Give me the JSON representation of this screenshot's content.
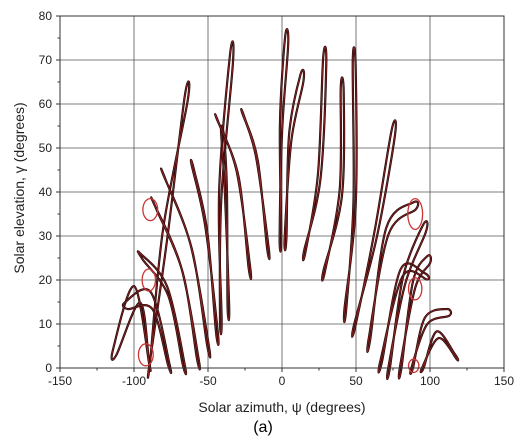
{
  "chart_data": {
    "type": "line",
    "title": "",
    "xlabel": "Solar azimuth, ψ (degrees)",
    "ylabel": "Solar elevation, γ (degrees)",
    "caption": "(a)",
    "xlim": [
      -150,
      150
    ],
    "ylim": [
      0,
      80
    ],
    "x_ticks": [
      -150,
      -100,
      -50,
      0,
      50,
      100,
      150
    ],
    "y_ticks": [
      0,
      10,
      20,
      30,
      40,
      50,
      60,
      70,
      80
    ],
    "grid": true,
    "colors": {
      "curve": "#2a0a0a",
      "curve_highlight": "#b03030",
      "marker": "#cc3333",
      "grid": "#555555"
    },
    "series": [
      {
        "values": [
          [
            -89.6,
            0.7
          ],
          [
            -77.7,
            29.0
          ],
          [
            -65.7,
            61.8
          ],
          [
            -63.8,
            60.6
          ],
          [
            -80.3,
            31.7
          ],
          [
            -88.9,
            2.2
          ]
        ]
      },
      {
        "values": [
          [
            -89.6,
            0.7
          ],
          [
            -99.9,
            18.6
          ],
          [
            -114.1,
            4.3
          ],
          [
            -112.0,
            2.9
          ],
          [
            -96.0,
            14.9
          ],
          [
            -90.1,
            2.2
          ]
        ]
      },
      {
        "values": [
          [
            -75.9,
            0.7
          ],
          [
            -88.6,
            17.2
          ],
          [
            -106.1,
            14.9
          ],
          [
            -104.2,
            13.4
          ],
          [
            -87.6,
            13.4
          ],
          [
            -77.0,
            0.7
          ]
        ]
      },
      {
        "values": [
          [
            -65.7,
            0.7
          ],
          [
            -77.7,
            18.6
          ],
          [
            -96.0,
            26.1
          ],
          [
            -94.0,
            24.6
          ],
          [
            -76.8,
            16.4
          ],
          [
            -67.0,
            0.7
          ]
        ]
      },
      {
        "values": [
          [
            -56.4,
            2.2
          ],
          [
            -68.3,
            23.1
          ],
          [
            -86.9,
            37.6
          ],
          [
            -84.9,
            36.1
          ],
          [
            -67.0,
            21.6
          ],
          [
            -57.5,
            2.2
          ]
        ]
      },
      {
        "values": [
          [
            -49.5,
            5.2
          ],
          [
            -62.0,
            28.3
          ],
          [
            -80.3,
            44.0
          ],
          [
            -78.3,
            42.5
          ],
          [
            -60.8,
            26.9
          ],
          [
            -50.6,
            5.2
          ]
        ]
      },
      {
        "values": [
          [
            -43.4,
            8.2
          ],
          [
            -52.0,
            32.5
          ],
          [
            -61.1,
            46.2
          ],
          [
            -59.2,
            44.7
          ],
          [
            -50.5,
            31.0
          ],
          [
            -44.6,
            8.2
          ]
        ]
      },
      {
        "values": [
          [
            -40.8,
            11.2
          ],
          [
            -42.5,
            40.0
          ],
          [
            -35.2,
            71.0
          ],
          [
            -33.1,
            69.6
          ],
          [
            -41.0,
            38.5
          ],
          [
            -41.9,
            11.2
          ]
        ]
      },
      {
        "values": [
          [
            -35.7,
            14.2
          ],
          [
            -38.8,
            41.5
          ],
          [
            -41.2,
            54.1
          ],
          [
            -39.2,
            52.6
          ],
          [
            -37.2,
            40.0
          ],
          [
            -36.8,
            14.2
          ]
        ]
      },
      {
        "values": [
          [
            -21.5,
            22.9
          ],
          [
            -30.8,
            44.9
          ],
          [
            -44.3,
            56.8
          ],
          [
            -42.3,
            55.3
          ],
          [
            -29.3,
            43.4
          ],
          [
            -22.6,
            22.9
          ]
        ]
      },
      {
        "values": [
          [
            -9.0,
            27.3
          ],
          [
            -17.8,
            48.4
          ],
          [
            -27.1,
            58.2
          ],
          [
            -25.1,
            56.7
          ],
          [
            -16.3,
            47.0
          ],
          [
            -10.1,
            27.3
          ]
        ]
      },
      {
        "values": [
          [
            -0.5,
            29.6
          ],
          [
            -1.4,
            55.4
          ],
          [
            2.1,
            75.2
          ],
          [
            4.2,
            73.7
          ],
          [
            0.1,
            54.0
          ],
          [
            -1.6,
            29.6
          ]
        ]
      },
      {
        "values": [
          [
            3.0,
            29.6
          ],
          [
            4.8,
            53.1
          ],
          [
            12.5,
            66.7
          ],
          [
            14.5,
            65.2
          ],
          [
            6.3,
            51.6
          ],
          [
            1.8,
            29.6
          ]
        ]
      },
      {
        "values": [
          [
            16.0,
            26.6
          ],
          [
            24.3,
            44.1
          ],
          [
            27.8,
            70.4
          ],
          [
            29.9,
            68.9
          ],
          [
            25.9,
            42.7
          ],
          [
            14.9,
            26.6
          ]
        ]
      },
      {
        "values": [
          [
            29.1,
            22.1
          ],
          [
            39.0,
            40.6
          ],
          [
            39.7,
            63.8
          ],
          [
            41.7,
            62.3
          ],
          [
            40.5,
            39.1
          ],
          [
            28.0,
            22.1
          ]
        ]
      },
      {
        "values": [
          [
            43.4,
            13.4
          ],
          [
            48.3,
            37.9
          ],
          [
            47.8,
            69.6
          ],
          [
            49.8,
            68.1
          ],
          [
            49.7,
            36.4
          ],
          [
            42.2,
            13.4
          ]
        ]
      },
      {
        "values": [
          [
            49.7,
            9.7
          ],
          [
            62.6,
            31.2
          ],
          [
            74.1,
            54.1
          ],
          [
            76.2,
            52.6
          ],
          [
            64.1,
            29.8
          ],
          [
            48.6,
            9.7
          ]
        ]
      },
      {
        "values": [
          [
            59.7,
            6.7
          ],
          [
            70.4,
            31.8
          ],
          [
            88.5,
            37.6
          ],
          [
            90.5,
            36.1
          ],
          [
            71.9,
            30.3
          ],
          [
            58.6,
            6.7
          ]
        ]
      },
      {
        "values": [
          [
            67.6,
            1.5
          ],
          [
            80.1,
            22.4
          ],
          [
            96.0,
            21.6
          ],
          [
            98.1,
            20.1
          ],
          [
            81.6,
            20.9
          ],
          [
            66.4,
            1.5
          ]
        ]
      },
      {
        "values": [
          [
            72.9,
            0.0
          ],
          [
            81.8,
            20.7
          ],
          [
            95.3,
            32.5
          ],
          [
            97.3,
            31.0
          ],
          [
            83.3,
            19.2
          ],
          [
            71.8,
            0.0
          ]
        ]
      },
      {
        "values": [
          [
            80.7,
            0.0
          ],
          [
            88.5,
            19.7
          ],
          [
            98.1,
            25.4
          ],
          [
            100.1,
            23.9
          ],
          [
            90.0,
            18.2
          ],
          [
            79.6,
            0.0
          ]
        ]
      },
      {
        "values": [
          [
            88.5,
            0.0
          ],
          [
            96.5,
            11.4
          ],
          [
            111.1,
            13.4
          ],
          [
            113.1,
            11.9
          ],
          [
            98.0,
            9.9
          ],
          [
            87.4,
            0.0
          ]
        ]
      },
      {
        "values": [
          [
            95.7,
            0.0
          ],
          [
            104.4,
            8.3
          ],
          [
            116.3,
            3.4
          ],
          [
            118.3,
            1.9
          ],
          [
            105.9,
            6.8
          ],
          [
            94.6,
            0.0
          ]
        ]
      }
    ],
    "highlight_circles": [
      {
        "x": -89.0,
        "y": 36.0,
        "rx": 5,
        "ry": 2.5
      },
      {
        "x": -90.0,
        "y": 20.0,
        "rx": 4.5,
        "ry": 2.5
      },
      {
        "x": -92.0,
        "y": 3.0,
        "rx": 5,
        "ry": 2.5
      },
      {
        "x": 90.0,
        "y": 35.0,
        "rx": 5,
        "ry": 3.5
      },
      {
        "x": 90.0,
        "y": 18.0,
        "rx": 4.5,
        "ry": 2.5
      },
      {
        "x": 89.0,
        "y": 0.5,
        "rx": 3.5,
        "ry": 1.5
      }
    ]
  }
}
